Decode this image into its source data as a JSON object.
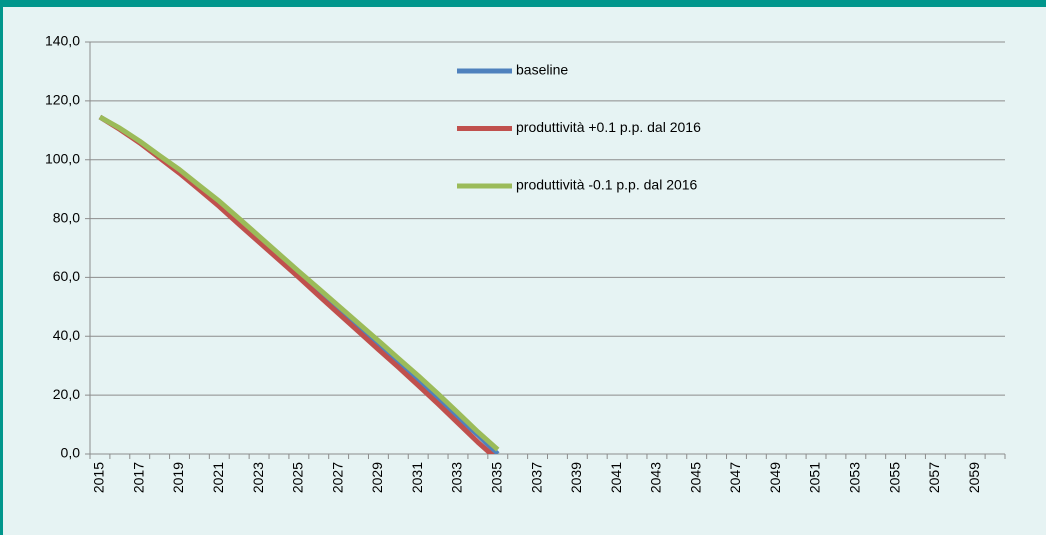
{
  "chart_data": {
    "type": "line",
    "categories": [
      "2015",
      null,
      "2017",
      null,
      "2019",
      null,
      "2021",
      null,
      "2023",
      null,
      "2025",
      null,
      "2027",
      null,
      "2029",
      null,
      "2031",
      null,
      "2033",
      null,
      "2035",
      null,
      "2037",
      null,
      "2039",
      null,
      "2041",
      null,
      "2043",
      null,
      "2045",
      null,
      "2047",
      null,
      "2049",
      null,
      "2051",
      null,
      "2053",
      null,
      "2055",
      null,
      "2057",
      null,
      "2059",
      null
    ],
    "series": [
      {
        "name": "baseline",
        "color": "#4f81bd",
        "values": [
          114.5,
          110.5,
          106,
          101,
          96,
          90.5,
          85,
          79,
          73,
          67,
          61,
          55,
          49,
          43,
          37,
          31,
          25,
          19,
          12.5,
          6.5,
          0,
          null,
          null,
          null,
          null,
          null,
          null,
          null,
          null,
          null,
          null,
          null,
          null,
          null,
          null,
          null,
          null,
          null,
          null,
          null,
          null,
          null,
          null,
          null,
          null,
          null
        ]
      },
      {
        "name": "produttività +0.1 p.p. dal 2016",
        "color": "#c0504d",
        "values": [
          114.5,
          110.3,
          105.7,
          100.6,
          95.4,
          89.8,
          84.1,
          78,
          72,
          66,
          60,
          53.8,
          47.7,
          41.6,
          35.5,
          29.5,
          23.3,
          17,
          10.5,
          4,
          -2,
          null,
          null,
          null,
          null,
          null,
          null,
          null,
          null,
          null,
          null,
          null,
          null,
          null,
          null,
          null,
          null,
          null,
          null,
          null,
          null,
          null,
          null,
          null,
          null,
          null
        ]
      },
      {
        "name": "produttività -0.1 p.p. dal 2016",
        "color": "#9bbb59",
        "values": [
          114.5,
          110.7,
          106.3,
          101.4,
          96.6,
          91.2,
          85.9,
          80,
          74,
          68,
          62,
          56.2,
          50.3,
          44.4,
          38.5,
          32.5,
          26.6,
          20.4,
          14,
          7.5,
          1.5,
          null,
          null,
          null,
          null,
          null,
          null,
          null,
          null,
          null,
          null,
          null,
          null,
          null,
          null,
          null,
          null,
          null,
          null,
          null,
          null,
          null,
          null,
          null,
          null,
          null
        ]
      }
    ],
    "ylim": [
      0,
      140
    ],
    "yticks": [
      {
        "value": 0,
        "label": "0,0"
      },
      {
        "value": 20,
        "label": "20,0"
      },
      {
        "value": 40,
        "label": "40,0"
      },
      {
        "value": 60,
        "label": "60,0"
      },
      {
        "value": 80,
        "label": "80,0"
      },
      {
        "value": 100,
        "label": "100,0"
      },
      {
        "value": 120,
        "label": "120,0"
      },
      {
        "value": 140,
        "label": "140,0"
      }
    ],
    "grid": true,
    "legend": "top"
  }
}
